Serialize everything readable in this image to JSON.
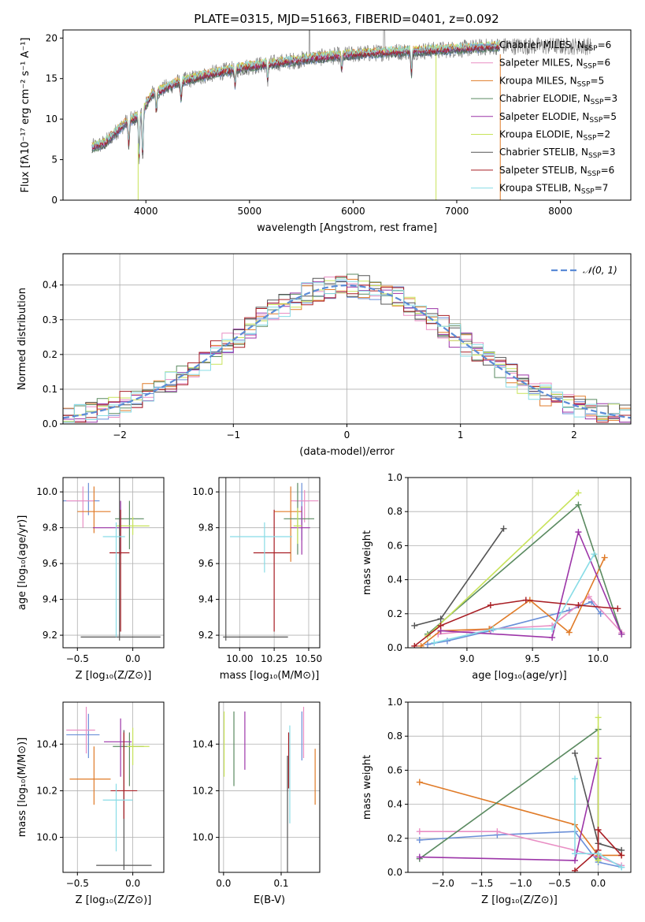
{
  "figure_title": "PLATE=0315, MJD=51663, FIBERID=0401, z=0.092",
  "colors": {
    "series": [
      "#6a8fd8",
      "#e98ec4",
      "#e07b28",
      "#5a8a60",
      "#9c35a8",
      "#c8e35a",
      "#555555",
      "#a81e24",
      "#88dce6"
    ],
    "observed": "#7f7f7f",
    "normal": "#5b8bd6"
  },
  "model_names": [
    "Chabrier MILES",
    "Salpeter MILES",
    "Kroupa MILES",
    "Chabrier ELODIE",
    "Salpeter ELODIE",
    "Kroupa ELODIE",
    "Chabrier STELIB",
    "Salpeter STELIB",
    "Kroupa STELIB"
  ],
  "chart_data": [
    {
      "id": "spectrum",
      "type": "line",
      "title": "PLATE=0315, MJD=51663, FIBERID=0401, z=0.092",
      "xlabel": "wavelength [Angstrom, rest frame]",
      "ylabel": "Flux [fλ10⁻¹⁷ erg cm⁻² s⁻¹ A⁻¹]",
      "xlim": [
        3200,
        8680
      ],
      "ylim": [
        0,
        21
      ],
      "xticks": [
        4000,
        5000,
        6000,
        7000,
        8000
      ],
      "yticks": [
        0,
        5,
        10,
        15,
        20
      ],
      "grid": false,
      "legend_position": "upper-right",
      "legend": [
        {
          "name": "Chabrier MILES",
          "nssp": "6"
        },
        {
          "name": "Salpeter MILES",
          "nssp": "6"
        },
        {
          "name": "Kroupa MILES",
          "nssp": "5"
        },
        {
          "name": "Chabrier ELODIE",
          "nssp": "3"
        },
        {
          "name": "Salpeter ELODIE",
          "nssp": "5"
        },
        {
          "name": "Kroupa ELODIE",
          "nssp": "2"
        },
        {
          "name": "Chabrier STELIB",
          "nssp": "3"
        },
        {
          "name": "Salpeter STELIB",
          "nssp": "6"
        },
        {
          "name": "Kroupa STELIB",
          "nssp": "7"
        }
      ],
      "continuum": {
        "x": [
          3480,
          3600,
          3800,
          3950,
          4050,
          4300,
          4600,
          5000,
          5300,
          5600,
          6000,
          6400,
          6800,
          7200,
          7400
        ],
        "y": [
          6.5,
          7.0,
          9.5,
          10.5,
          13.0,
          14.5,
          15.5,
          16.5,
          17.0,
          17.5,
          18.0,
          18.3,
          18.5,
          18.8,
          19.0
        ]
      },
      "observed_x_range": [
        3480,
        8300
      ],
      "model_x_range": [
        3480,
        7420
      ]
    },
    {
      "id": "residuals",
      "type": "histogram",
      "xlabel": "(data-model)/error",
      "ylabel": "Normed distribution",
      "xlim": [
        -2.5,
        2.5
      ],
      "ylim": [
        0,
        0.49
      ],
      "xticks": [
        -2,
        -1,
        0,
        1,
        2
      ],
      "yticks": [
        0.0,
        0.1,
        0.2,
        0.3,
        0.4
      ],
      "grid": true,
      "bin_width": 0.1,
      "legend_position": "upper-right",
      "reference_curve": "𝒩(0, 1)"
    },
    {
      "id": "age-vs-Z",
      "type": "errorbar",
      "xlabel": "Z [log₁₀(Z/Z⊙)]",
      "ylabel": "age  [log₁₀(age/yr)]",
      "xlim": [
        -0.63,
        0.28
      ],
      "ylim": [
        9.13,
        10.08
      ],
      "xticks": [
        -0.5,
        0.0
      ],
      "yticks": [
        9.2,
        9.4,
        9.6,
        9.8,
        10.0
      ],
      "grid": true,
      "points": [
        {
          "x": -0.4,
          "xerr": [
            0.25,
            0.1
          ],
          "y": 9.95,
          "yerr": [
            0.08,
            0.1
          ]
        },
        {
          "x": -0.45,
          "xerr": [
            0.15,
            0.1
          ],
          "y": 9.95,
          "yerr": [
            0.15,
            0.08
          ]
        },
        {
          "x": -0.35,
          "xerr": [
            0.15,
            0.15
          ],
          "y": 9.89,
          "yerr": [
            0.12,
            0.14
          ]
        },
        {
          "x": -0.03,
          "xerr": [
            0.13,
            0.13
          ],
          "y": 9.85,
          "yerr": [
            0.17,
            0.1
          ]
        },
        {
          "x": -0.11,
          "xerr": [
            0.25,
            0.08
          ],
          "y": 9.8,
          "yerr": [
            0.15,
            0.15
          ]
        },
        {
          "x": 0.0,
          "xerr": [
            0.15,
            0.15
          ],
          "y": 9.81,
          "yerr": [
            0.05,
            0.05
          ]
        },
        {
          "x": -0.12,
          "xerr": [
            0.35,
            0.37
          ],
          "y": 9.19,
          "yerr": [
            0.02,
            0.91
          ]
        },
        {
          "x": -0.11,
          "xerr": [
            0.1,
            0.08
          ],
          "y": 9.66,
          "yerr": [
            0.44,
            0.24
          ]
        },
        {
          "x": -0.15,
          "xerr": [
            0.12,
            0.08
          ],
          "y": 9.75,
          "yerr": [
            0.56,
            0.08
          ]
        }
      ]
    },
    {
      "id": "age-vs-mass",
      "type": "errorbar",
      "xlabel": "mass [log₁₀(M/M⊙)]",
      "ylabel": "",
      "xlim": [
        9.85,
        10.58
      ],
      "ylim": [
        9.13,
        10.08
      ],
      "xticks": [
        10.0,
        10.25,
        10.5
      ],
      "yticks": [
        9.2,
        9.4,
        9.6,
        9.8,
        10.0
      ],
      "grid": true,
      "points": [
        {
          "x": 10.45,
          "xerr": [
            0.05,
            0.05
          ],
          "y": 9.95,
          "yerr": [
            0.22,
            0.1
          ]
        },
        {
          "x": 10.47,
          "xerr": [
            0.1,
            0.1
          ],
          "y": 9.95,
          "yerr": [
            0.12,
            0.06
          ]
        },
        {
          "x": 10.37,
          "xerr": [
            0.12,
            0.08
          ],
          "y": 9.89,
          "yerr": [
            0.28,
            0.14
          ]
        },
        {
          "x": 10.42,
          "xerr": [
            0.1,
            0.12
          ],
          "y": 9.85,
          "yerr": [
            0.2,
            0.2
          ]
        },
        {
          "x": 10.45,
          "xerr": [
            0.08,
            0.06
          ],
          "y": 9.8,
          "yerr": [
            0.15,
            0.12
          ]
        },
        {
          "x": 10.42,
          "xerr": [
            0.03,
            0.03
          ],
          "y": 9.81,
          "yerr": [
            0.1,
            0.1
          ]
        },
        {
          "x": 9.9,
          "xerr": [
            0.02,
            0.45
          ],
          "y": 9.19,
          "yerr": [
            0.02,
            0.91
          ]
        },
        {
          "x": 10.25,
          "xerr": [
            0.15,
            0.12
          ],
          "y": 9.66,
          "yerr": [
            0.44,
            0.24
          ]
        },
        {
          "x": 10.18,
          "xerr": [
            0.25,
            0.2
          ],
          "y": 9.75,
          "yerr": [
            0.2,
            0.08
          ]
        }
      ]
    },
    {
      "id": "weight-vs-age",
      "type": "line",
      "xlabel": "age  [log₁₀(age/yr)]",
      "ylabel": "mass weight",
      "xlim": [
        8.55,
        10.25
      ],
      "ylim": [
        0,
        1
      ],
      "xticks": [
        9.0,
        9.5,
        10.0
      ],
      "yticks": [
        0.0,
        0.2,
        0.4,
        0.6,
        0.8,
        1.0
      ],
      "grid": true,
      "series": [
        {
          "x": [
            8.7,
            8.85,
            9.18,
            9.78,
            9.95,
            10.02
          ],
          "y": [
            0.02,
            0.04,
            0.1,
            0.22,
            0.27,
            0.2
          ]
        },
        {
          "x": [
            8.78,
            9.18,
            9.65,
            9.93,
            10.18
          ],
          "y": [
            0.08,
            0.11,
            0.13,
            0.3,
            0.09
          ]
        },
        {
          "x": [
            8.65,
            8.8,
            9.17,
            9.48,
            9.78,
            10.05
          ],
          "y": [
            0.01,
            0.1,
            0.11,
            0.28,
            0.09,
            0.53
          ]
        },
        {
          "x": [
            8.7,
            9.85,
            10.18
          ],
          "y": [
            0.08,
            0.84,
            0.08
          ]
        },
        {
          "x": [
            8.8,
            9.65,
            9.85,
            10.18
          ],
          "y": [
            0.1,
            0.06,
            0.68,
            0.08
          ]
        },
        {
          "x": [
            8.7,
            9.85
          ],
          "y": [
            0.07,
            0.91
          ]
        },
        {
          "x": [
            8.6,
            8.8,
            9.28
          ],
          "y": [
            0.13,
            0.17,
            0.7
          ]
        },
        {
          "x": [
            8.6,
            8.8,
            9.18,
            9.45,
            9.85,
            10.15
          ],
          "y": [
            0.01,
            0.13,
            0.25,
            0.28,
            0.25,
            0.23
          ]
        },
        {
          "x": [
            8.75,
            9.2,
            9.65,
            9.97
          ],
          "y": [
            0.03,
            0.11,
            0.11,
            0.55
          ]
        }
      ]
    },
    {
      "id": "mass-vs-Z",
      "type": "errorbar",
      "xlabel": "Z [log₁₀(Z/Z⊙)]",
      "ylabel": "mass [log₁₀(M/M⊙)]",
      "xlim": [
        -0.63,
        0.28
      ],
      "ylim": [
        9.85,
        10.58
      ],
      "xticks": [
        -0.5,
        0.0
      ],
      "yticks": [
        10.0,
        10.2,
        10.4
      ],
      "grid": true,
      "points": [
        {
          "x": -0.4,
          "xerr": [
            0.2,
            0.1
          ],
          "y": 10.44,
          "yerr": [
            0.1,
            0.09
          ]
        },
        {
          "x": -0.42,
          "xerr": [
            0.18,
            0.08
          ],
          "y": 10.46,
          "yerr": [
            0.1,
            0.1
          ]
        },
        {
          "x": -0.35,
          "xerr": [
            0.22,
            0.15
          ],
          "y": 10.25,
          "yerr": [
            0.11,
            0.14
          ]
        },
        {
          "x": -0.03,
          "xerr": [
            0.15,
            0.13
          ],
          "y": 10.39,
          "yerr": [
            0.17,
            0.06
          ]
        },
        {
          "x": -0.11,
          "xerr": [
            0.15,
            0.1
          ],
          "y": 10.41,
          "yerr": [
            0.15,
            0.1
          ]
        },
        {
          "x": 0.0,
          "xerr": [
            0.05,
            0.15
          ],
          "y": 10.39,
          "yerr": [
            0.08,
            0.08
          ]
        },
        {
          "x": -0.08,
          "xerr": [
            0.25,
            0.25
          ],
          "y": 9.88,
          "yerr": [
            0.02,
            0.58
          ]
        },
        {
          "x": -0.08,
          "xerr": [
            0.12,
            0.12
          ],
          "y": 10.2,
          "yerr": [
            0.12,
            0.25
          ]
        },
        {
          "x": -0.15,
          "xerr": [
            0.12,
            0.15
          ],
          "y": 10.16,
          "yerr": [
            0.22,
            0.07
          ]
        }
      ]
    },
    {
      "id": "mass-vs-ebv",
      "type": "errorbar",
      "xlabel": "E(B-V)",
      "ylabel": "",
      "xlim": [
        -0.008,
        0.167
      ],
      "ylim": [
        9.85,
        10.58
      ],
      "xticks": [
        0.0,
        0.1
      ],
      "yticks": [
        10.0,
        10.2,
        10.4
      ],
      "grid": true,
      "points": [
        {
          "x": 0.136,
          "y": 10.45,
          "yerr": [
            0.12,
            0.09
          ]
        },
        {
          "x": 0.139,
          "y": 10.46,
          "yerr": [
            0.12,
            0.1
          ]
        },
        {
          "x": 0.159,
          "y": 10.25,
          "yerr": [
            0.11,
            0.13
          ]
        },
        {
          "x": 0.018,
          "y": 10.39,
          "yerr": [
            0.17,
            0.15
          ]
        },
        {
          "x": 0.037,
          "y": 10.42,
          "yerr": [
            0.13,
            0.12
          ]
        },
        {
          "x": 0.001,
          "y": 10.4,
          "yerr": [
            0.14,
            0.14
          ]
        },
        {
          "x": 0.111,
          "y": 10.15,
          "yerr": [
            0.32,
            0.2
          ]
        },
        {
          "x": 0.113,
          "y": 10.33,
          "yerr": [
            0.12,
            0.12
          ]
        },
        {
          "x": 0.115,
          "y": 10.2,
          "yerr": [
            0.14,
            0.28
          ]
        }
      ]
    },
    {
      "id": "weight-vs-Z",
      "type": "line",
      "xlabel": "Z [log₁₀(Z/Z⊙)]",
      "ylabel": "mass weight",
      "xlim": [
        -2.45,
        0.42
      ],
      "ylim": [
        0,
        1
      ],
      "xticks": [
        -2.0,
        -1.5,
        -1.0,
        -0.5,
        0.0
      ],
      "yticks": [
        0.0,
        0.2,
        0.4,
        0.6,
        0.8,
        1.0
      ],
      "grid": true,
      "series": [
        {
          "x": [
            -2.3,
            -1.3,
            -0.3,
            0.0,
            0.3
          ],
          "y": [
            0.19,
            0.22,
            0.24,
            0.06,
            0.03
          ]
        },
        {
          "x": [
            -2.3,
            -1.3,
            -0.3,
            0.0,
            0.3
          ],
          "y": [
            0.24,
            0.24,
            0.13,
            0.09,
            0.04
          ]
        },
        {
          "x": [
            -2.3,
            -0.3,
            0.0,
            0.3
          ],
          "y": [
            0.53,
            0.28,
            0.1,
            0.1
          ]
        },
        {
          "x": [
            -2.3,
            0.0,
            0.0
          ],
          "y": [
            0.08,
            0.84,
            0.08
          ]
        },
        {
          "x": [
            -2.3,
            -0.3,
            0.0,
            0.0
          ],
          "y": [
            0.09,
            0.07,
            0.67,
            0.09
          ]
        },
        {
          "x": [
            0.0,
            0.0
          ],
          "y": [
            0.07,
            0.91
          ]
        },
        {
          "x": [
            -0.3,
            0.0,
            0.3
          ],
          "y": [
            0.7,
            0.17,
            0.13
          ]
        },
        {
          "x": [
            -0.3,
            0.0,
            0.0,
            0.3
          ],
          "y": [
            0.01,
            0.13,
            0.25,
            0.1
          ]
        },
        {
          "x": [
            -0.3,
            -0.3,
            0.0,
            0.3
          ],
          "y": [
            0.55,
            0.11,
            0.11,
            0.03
          ]
        }
      ]
    }
  ]
}
